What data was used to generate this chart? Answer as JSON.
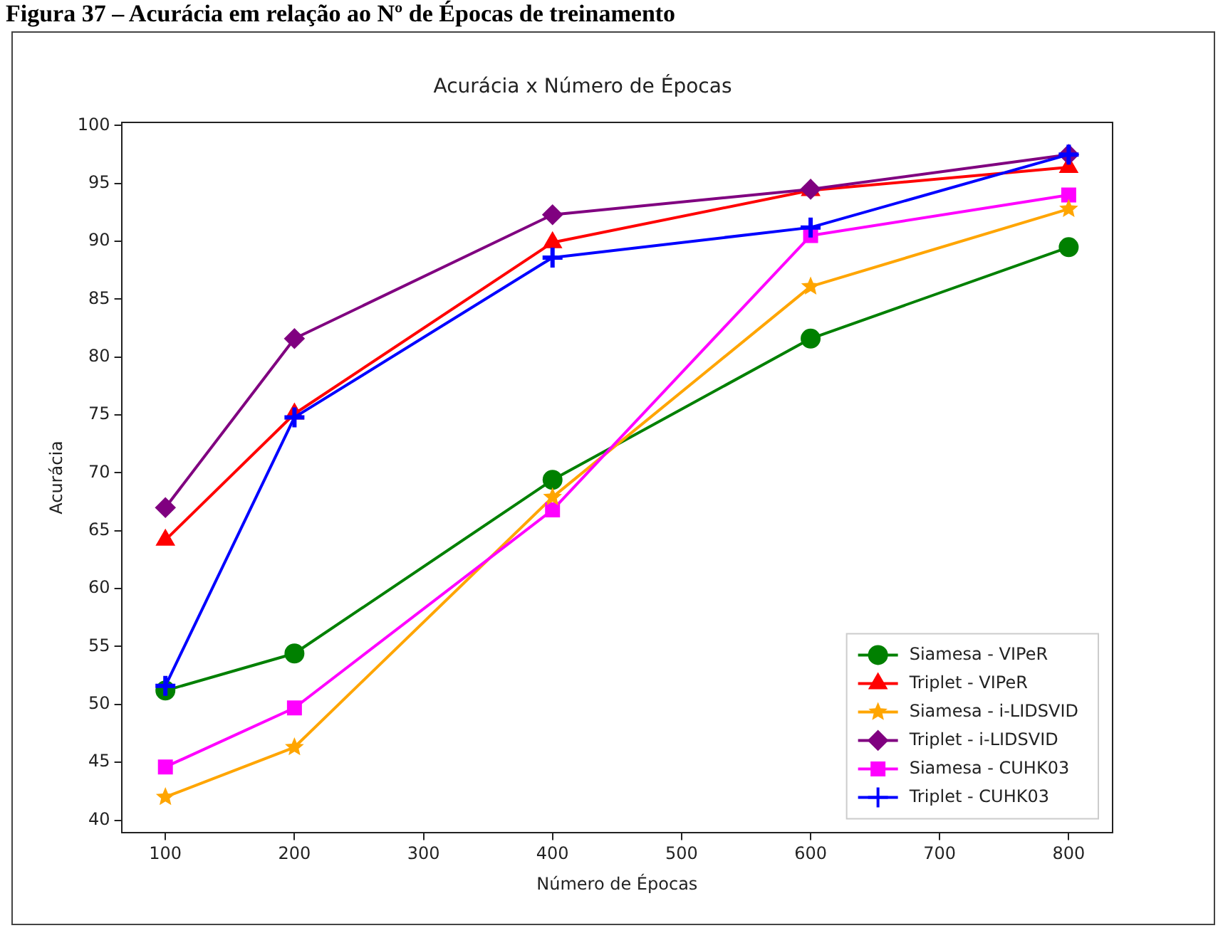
{
  "chart_data": {
    "type": "line",
    "title": "Acurácia x Número de Épocas",
    "xlabel": "Número de Épocas",
    "ylabel": "Acurácia",
    "annotations": [
      "Figura 37 – Acurácia em relação ao Nº de Épocas de treinamento"
    ],
    "x": [
      100,
      200,
      400,
      600,
      800
    ],
    "series": [
      {
        "name": "Siamesa - VIPeR",
        "color": "#008000",
        "marker": "circle",
        "values": [
          51.2,
          54.4,
          69.4,
          81.6,
          89.5
        ]
      },
      {
        "name": "Triplet - VIPeR",
        "color": "#ff0000",
        "marker": "triangle",
        "values": [
          64.2,
          75.1,
          89.9,
          94.4,
          96.4
        ]
      },
      {
        "name": "Siamesa - i-LIDSVID",
        "color": "#ffa500",
        "marker": "star",
        "values": [
          42.0,
          46.3,
          67.9,
          86.1,
          92.8
        ]
      },
      {
        "name": "Triplet - i-LIDSVID",
        "color": "#800080",
        "marker": "diamond",
        "values": [
          67.0,
          81.6,
          92.3,
          94.5,
          97.5
        ]
      },
      {
        "name": "Siamesa - CUHK03",
        "color": "#ff00ff",
        "marker": "square",
        "values": [
          44.6,
          49.7,
          66.8,
          90.5,
          94.0
        ]
      },
      {
        "name": "Triplet - CUHK03",
        "color": "#0000ff",
        "marker": "cross",
        "values": [
          51.6,
          74.8,
          88.6,
          91.2,
          97.5
        ]
      }
    ],
    "xlim": [
      66,
      834
    ],
    "xticks": [
      100,
      200,
      300,
      400,
      500,
      600,
      700,
      800
    ],
    "ylim": [
      38.9,
      100.3
    ],
    "yticks": [
      40,
      45,
      50,
      55,
      60,
      65,
      70,
      75,
      80,
      85,
      90,
      95,
      100
    ],
    "grid": false,
    "legend": "bottom right",
    "line_style": "solid"
  }
}
